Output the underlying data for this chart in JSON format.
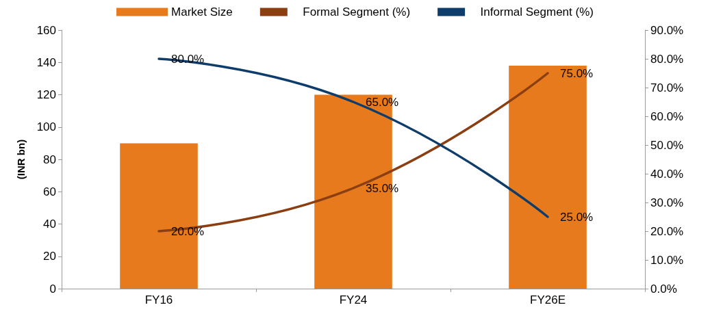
{
  "chart_data": {
    "type": "bar",
    "ylabel": "(INR bn)",
    "categories": [
      "FY16",
      "FY24",
      "FY26E"
    ],
    "series": [
      {
        "name": "Market Size",
        "color": "#e67a1c",
        "values": [
          90,
          120,
          138
        ]
      },
      {
        "name": "Formal Segment (%)",
        "type": "line",
        "axis": "y2",
        "color": "#8b3e12",
        "values": [
          20,
          35,
          75
        ],
        "value_labels": [
          "20.0%",
          "35.0%",
          "75.0%"
        ]
      },
      {
        "name": "Informal Segment (%)",
        "type": "line",
        "axis": "y2",
        "color": "#0e3d6b",
        "values": [
          80,
          65,
          25
        ],
        "value_labels": [
          "80.0%",
          "65.0%",
          "25.0%"
        ]
      }
    ],
    "ylim": [
      0,
      160
    ],
    "yticks": [
      0,
      20,
      40,
      60,
      80,
      100,
      120,
      140,
      160
    ],
    "y2lim": [
      0,
      90
    ],
    "y2ticks": [
      {
        "value": 0,
        "label": "0.0%"
      },
      {
        "value": 10,
        "label": "10.0%"
      },
      {
        "value": 20,
        "label": "20.0%"
      },
      {
        "value": 30,
        "label": "30.0%"
      },
      {
        "value": 40,
        "label": "40.0%"
      },
      {
        "value": 50,
        "label": "50.0%"
      },
      {
        "value": 60,
        "label": "60.0%"
      },
      {
        "value": 70,
        "label": "70.0%"
      },
      {
        "value": 80,
        "label": "80.0%"
      },
      {
        "value": 90,
        "label": "90.0%"
      }
    ],
    "legend": "top",
    "grid": false,
    "marker": "none",
    "line_style": "solid"
  }
}
